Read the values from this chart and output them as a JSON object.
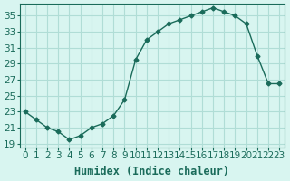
{
  "x": [
    0,
    1,
    2,
    3,
    4,
    5,
    6,
    7,
    8,
    9,
    10,
    11,
    12,
    13,
    14,
    15,
    16,
    17,
    18,
    19,
    20,
    21,
    22,
    23
  ],
  "y": [
    23,
    22,
    21,
    20.5,
    19.5,
    20,
    21,
    21.5,
    22.5,
    24.5,
    29.5,
    32,
    33,
    34,
    34.5,
    35,
    35.5,
    36,
    35.5,
    35,
    34,
    30,
    26.5,
    26.5
  ],
  "line_color": "#1a6b5a",
  "marker": "D",
  "marker_size": 2.5,
  "bg_color": "#d8f5f0",
  "grid_color": "#b0ddd6",
  "xlabel": "Humidex (Indice chaleur)",
  "yticks": [
    19,
    21,
    23,
    25,
    27,
    29,
    31,
    33,
    35
  ],
  "xlim": [
    -0.5,
    23.5
  ],
  "ylim": [
    18.5,
    36.5
  ],
  "xtick_labels": [
    "0",
    "1",
    "2",
    "3",
    "4",
    "5",
    "6",
    "7",
    "8",
    "9",
    "10",
    "11",
    "12",
    "13",
    "14",
    "15",
    "16",
    "17",
    "18",
    "19",
    "20",
    "21",
    "22",
    "23"
  ],
  "xlabel_fontsize": 8.5,
  "tick_fontsize": 7.5
}
